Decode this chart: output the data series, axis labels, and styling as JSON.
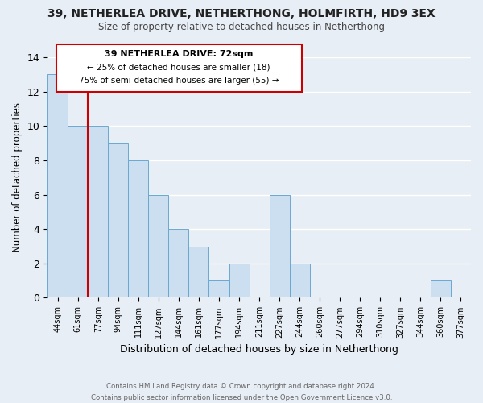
{
  "title": "39, NETHERLEA DRIVE, NETHERTHONG, HOLMFIRTH, HD9 3EX",
  "subtitle": "Size of property relative to detached houses in Netherthong",
  "xlabel": "Distribution of detached houses by size in Netherthong",
  "ylabel": "Number of detached properties",
  "bar_labels": [
    "44sqm",
    "61sqm",
    "77sqm",
    "94sqm",
    "111sqm",
    "127sqm",
    "144sqm",
    "161sqm",
    "177sqm",
    "194sqm",
    "211sqm",
    "227sqm",
    "244sqm",
    "260sqm",
    "277sqm",
    "294sqm",
    "310sqm",
    "327sqm",
    "344sqm",
    "360sqm",
    "377sqm"
  ],
  "bar_values": [
    13,
    10,
    10,
    9,
    8,
    6,
    4,
    3,
    1,
    2,
    0,
    6,
    2,
    0,
    0,
    0,
    0,
    0,
    0,
    1,
    0
  ],
  "bar_color": "#ccdff0",
  "bar_edge_color": "#6aa8d0",
  "bg_color": "#e8eef5",
  "grid_color": "#ffffff",
  "annotation_box_color": "#ffffff",
  "annotation_border_color": "#cc0000",
  "vline_color": "#cc0000",
  "vline_bar_index": 2,
  "annotation_title": "39 NETHERLEA DRIVE: 72sqm",
  "annotation_line1": "← 25% of detached houses are smaller (18)",
  "annotation_line2": "75% of semi-detached houses are larger (55) →",
  "ylim": [
    0,
    14
  ],
  "yticks": [
    0,
    2,
    4,
    6,
    8,
    10,
    12,
    14
  ],
  "footer1": "Contains HM Land Registry data © Crown copyright and database right 2024.",
  "footer2": "Contains public sector information licensed under the Open Government Licence v3.0."
}
